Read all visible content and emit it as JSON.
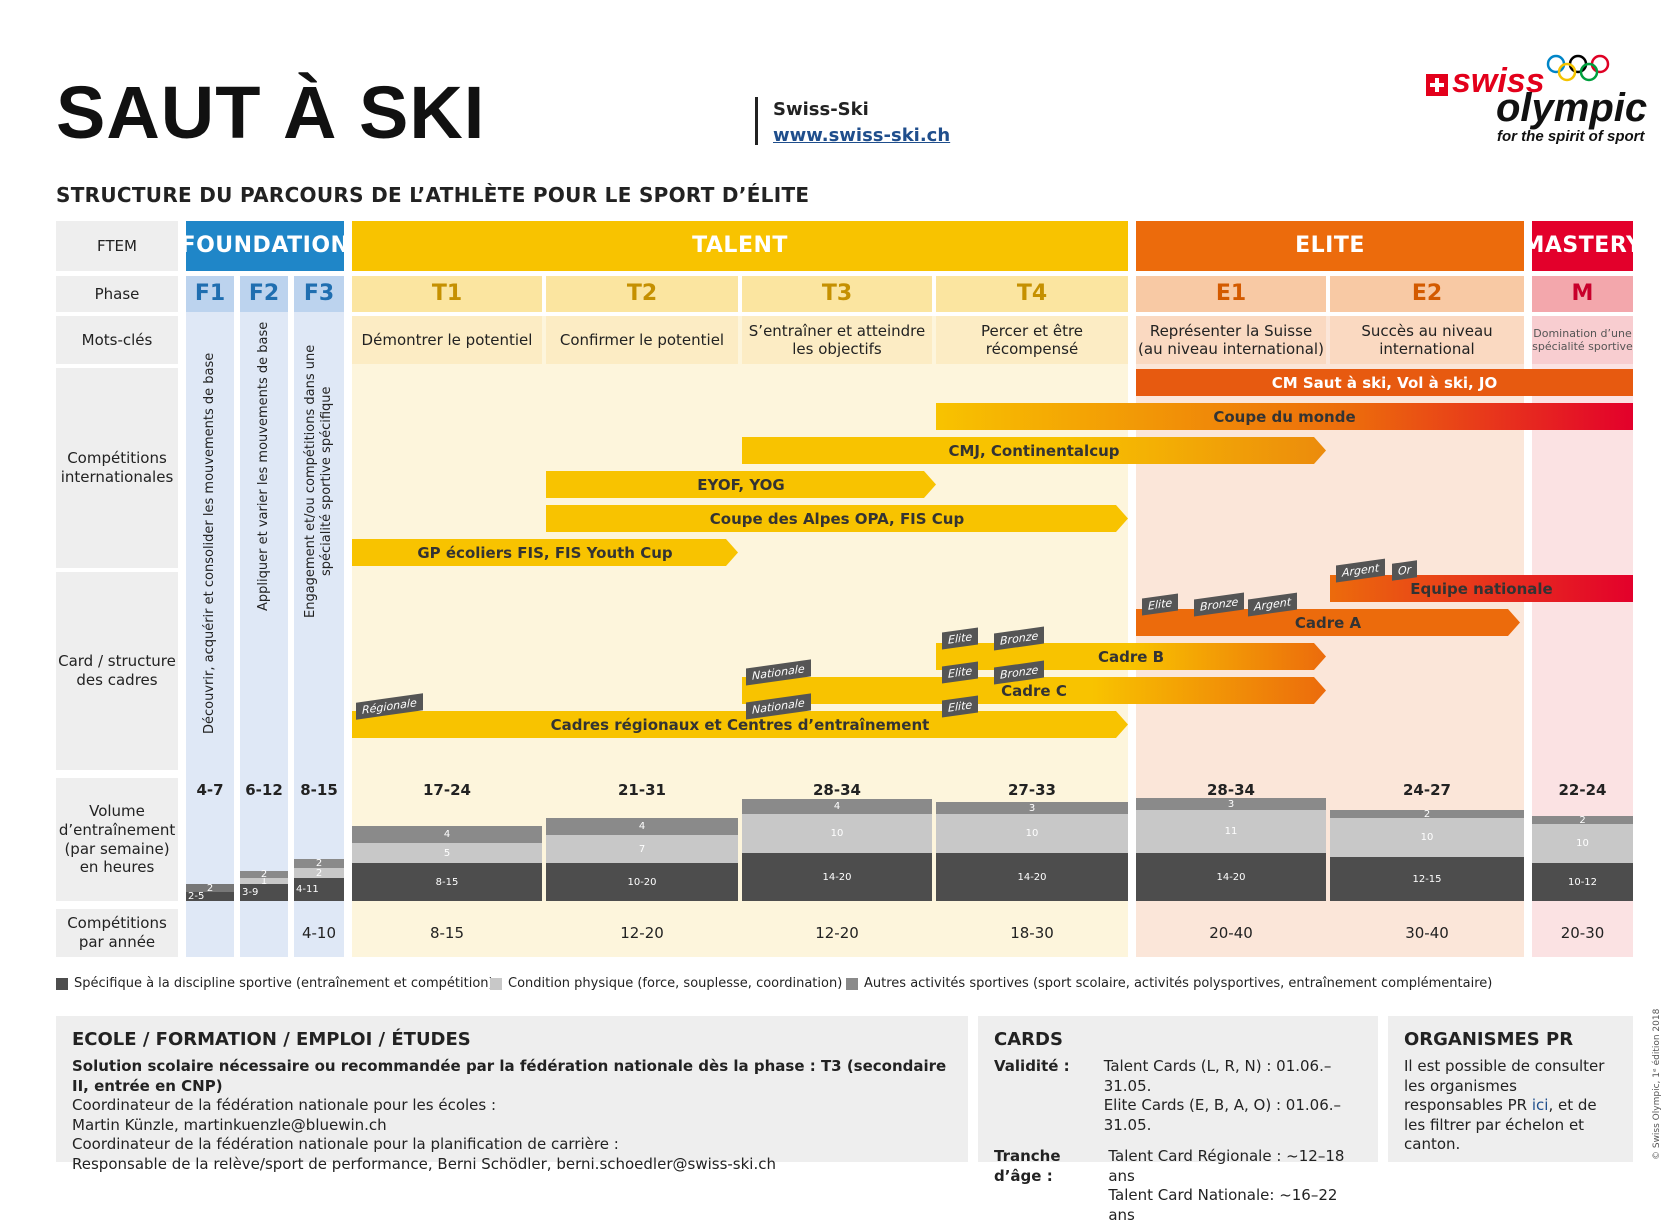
{
  "header": {
    "title": "SAUT À SKI",
    "org": "Swiss-Ski",
    "org_url": "www.swiss-ski.ch",
    "subtitle": "STRUCTURE DU PARCOURS DE L’ATHLÈTE POUR LE SPORT D’ÉLITE"
  },
  "logo": {
    "swiss": "swiss",
    "olympic": "olympic",
    "tagline": "for the spirit of sport",
    "rings_icon": "olympic-rings"
  },
  "rows": {
    "ftem": "FTEM",
    "phase": "Phase",
    "mots": "Mots-clés",
    "comp": "Compétitions internationales",
    "card": "Card / structure des cadres",
    "volume": "Volume d’entraînement (par semaine) en heures",
    "comp_year": "Compétitions par année"
  },
  "bands": {
    "foundation": "FOUNDATION",
    "talent": "TALENT",
    "elite": "ELITE",
    "mastery": "MASTERY"
  },
  "phases": {
    "f1": "F1",
    "f2": "F2",
    "f3": "F3",
    "t1": "T1",
    "t2": "T2",
    "t3": "T3",
    "t4": "T4",
    "e1": "E1",
    "e2": "E2",
    "m": "M"
  },
  "keywords": {
    "t1": "Démontrer le potentiel",
    "t2": "Confirmer le potentiel",
    "t3": "S’entraîner et atteindre les objectifs",
    "t4": "Percer et être récompensé",
    "e1": "Représenter la Suisse (au niveau international)",
    "e2": "Succès au niveau international",
    "m": "Domination d’une spécialité sportive"
  },
  "foundation_text": {
    "f1": "Découvrir, acquérir et consolider les mouvements de base",
    "f2": "Appliquer et varier les mouvements de base",
    "f3": "Engagement et/ou compétitions dans une spécialité sportive spécifique"
  },
  "competitions": {
    "cm": "CM Saut à ski, Vol à ski, JO",
    "wc": "Coupe du monde",
    "cmj": "CMJ, Continentalcup",
    "eyof": "EYOF, YOG",
    "alpes": "Coupe des Alpes OPA, FIS Cup",
    "gp": "GP écoliers FIS, FIS Youth Cup"
  },
  "cadres": {
    "nat": "Equipe nationale",
    "a": "Cadre A",
    "b": "Cadre B",
    "c": "Cadre C",
    "reg": "Cadres régionaux et Centres d’entraînement"
  },
  "tags": {
    "regionale": "Régionale",
    "nationale": "Nationale",
    "elite": "Elite",
    "bronze": "Bronze",
    "argent": "Argent",
    "or": "Or"
  },
  "volume": {
    "f1": {
      "total": "4-7",
      "a": "2-5",
      "b": "2",
      "c": ""
    },
    "f2": {
      "total": "6-12",
      "a": "3-9",
      "b": "1",
      "c": "2"
    },
    "f3": {
      "total": "8-15",
      "a": "4-11",
      "b": "2",
      "c": "2"
    },
    "t1": {
      "total": "17-24",
      "a": "8-15",
      "b": "5",
      "c": "4"
    },
    "t2": {
      "total": "21-31",
      "a": "10-20",
      "b": "7",
      "c": "4"
    },
    "t3": {
      "total": "28-34",
      "a": "14-20",
      "b": "10",
      "c": "4"
    },
    "t4": {
      "total": "27-33",
      "a": "14-20",
      "b": "10",
      "c": "3"
    },
    "e1": {
      "total": "28-34",
      "a": "14-20",
      "b": "11",
      "c": "3"
    },
    "e2": {
      "total": "24-27",
      "a": "12-15",
      "b": "10",
      "c": "2"
    },
    "m": {
      "total": "22-24",
      "a": "10-12",
      "b": "10",
      "c": "2"
    }
  },
  "comp_year": {
    "f3": "4-10",
    "t1": "8-15",
    "t2": "12-20",
    "t3": "12-20",
    "t4": "18-30",
    "e1": "20-40",
    "e2": "30-40",
    "m": "20-30"
  },
  "legend": {
    "dark": "Spécifique à la discipline sportive (entraînement et compétition)",
    "light": "Condition physique (force, souplesse, coordination)",
    "mid": "Autres activités sportives (sport scolaire, activités polysportives, entraînement complémentaire)"
  },
  "school": {
    "title": "ECOLE / FORMATION / EMPLOI / ÉTUDES",
    "l1": "Solution scolaire nécessaire ou recommandée par la fédération nationale dès la phase : T3 (secondaire II, entrée en CNP)",
    "l2": "Coordinateur de la fédération nationale pour les écoles :",
    "l3": "Martin Künzle, martinkuenzle@bluewin.ch",
    "l4": "Coordinateur de la fédération nationale pour la planification de carrière :",
    "l5": "Responsable de la relève/sport de performance, Berni Schödler, berni.schoedler@swiss-ski.ch"
  },
  "cards": {
    "title": "CARDS",
    "val_lbl": "Validité :",
    "val1": "Talent Cards (L, R, N) : 01.06.–31.05.",
    "val2": "Elite Cards (E, B, A, O) : 01.06.–31.05.",
    "age_lbl": "Tranche d’âge :",
    "age1": "Talent Card Régionale : ~12–18 ans",
    "age2": "Talent Card Nationale: ~16–22 ans"
  },
  "orgs": {
    "title": "ORGANISMES PR",
    "text1": "Il est possible de consulter les organismes responsables PR ",
    "link": "ici",
    "text2": ", et de les filtrer par échelon et canton."
  },
  "copyright": "© Swiss Olympic, 1ᵉ édition 2018",
  "colors": {
    "foundation": "#1f86c8",
    "talent": "#f8c300",
    "elite": "#ec6b0c",
    "mastery": "#e3002b"
  }
}
